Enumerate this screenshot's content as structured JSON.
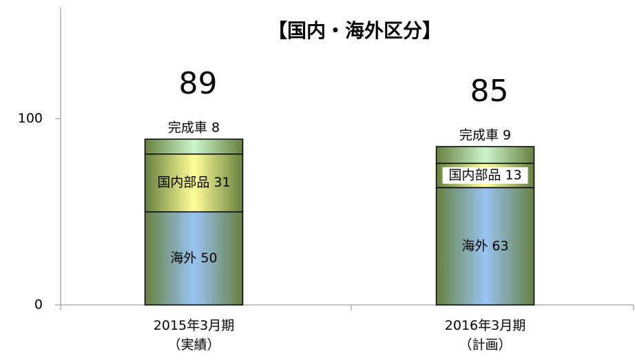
{
  "chart_data": {
    "type": "stacked_bar",
    "title": "【国内・海外区分】",
    "categories": [
      "2015年3月期\n（実績）",
      "2016年3月期\n（計画）"
    ],
    "series": [
      {
        "name": "海外",
        "color": "#99c4f2",
        "values": [
          50,
          63
        ],
        "value_labels": [
          "海外 50",
          "海外 63"
        ]
      },
      {
        "name": "国内部品",
        "color": "#ffff99",
        "values": [
          31,
          13
        ],
        "value_labels": [
          "国内部品 31",
          "国内部品 13"
        ]
      },
      {
        "name": "完成車",
        "color": "#ccf5cc",
        "values": [
          8,
          9
        ],
        "value_labels": [
          "完成車 8",
          "完成車 9"
        ]
      }
    ],
    "totals": [
      89,
      85
    ],
    "ylim": [
      0,
      160
    ],
    "yticks": [
      0,
      100
    ]
  }
}
